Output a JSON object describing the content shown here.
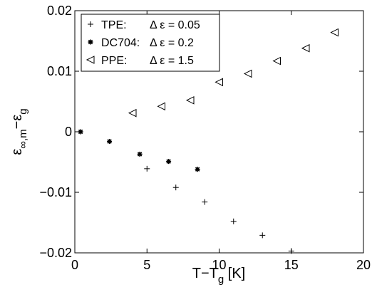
{
  "chart_data": {
    "type": "scatter",
    "xlabel": "T−T",
    "xlabel_sub": "g",
    "xlabel_unit": " [K]",
    "ylabel_main": "ε",
    "ylabel_sub1": "∞,m",
    "ylabel_mid": "−ε",
    "ylabel_sub2": "g",
    "xlim": [
      0,
      20
    ],
    "ylim": [
      -0.02,
      0.02
    ],
    "xticks": [
      0,
      5,
      10,
      15,
      20
    ],
    "xtick_labels": [
      "0",
      "5",
      "10",
      "15",
      "20"
    ],
    "yticks": [
      -0.02,
      -0.01,
      0,
      0.01,
      0.02
    ],
    "ytick_labels": [
      "−0.02",
      "−0.01",
      "0",
      "0.01",
      "0.02"
    ],
    "grid": false,
    "legend_position": "top-left",
    "series": [
      {
        "name": "TPE:",
        "legend_delta": "Δ ε = 0.05",
        "marker": "plus",
        "x": [
          5,
          7,
          9,
          11,
          13,
          15
        ],
        "y": [
          -0.0061,
          -0.0092,
          -0.0116,
          -0.0148,
          -0.0171,
          -0.0197
        ]
      },
      {
        "name": "DC704:",
        "legend_delta": "Δ ε = 0.2",
        "marker": "star",
        "x": [
          0.4,
          2.4,
          4.5,
          6.5,
          8.5
        ],
        "y": [
          0.0,
          -0.0016,
          -0.0037,
          -0.0049,
          -0.0062
        ]
      },
      {
        "name": "PPE:",
        "legend_delta": "Δ ε = 1.5",
        "marker": "triangle-left",
        "x": [
          4,
          6,
          8,
          10,
          12,
          14,
          16,
          18
        ],
        "y": [
          0.0031,
          0.0042,
          0.0052,
          0.0082,
          0.0096,
          0.0117,
          0.0138,
          0.0164
        ]
      }
    ]
  }
}
